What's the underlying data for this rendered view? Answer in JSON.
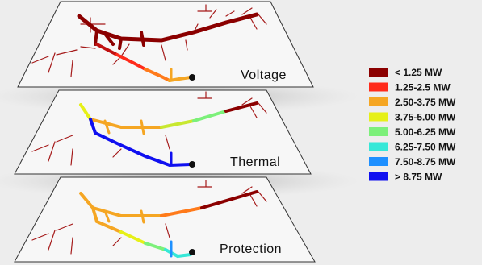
{
  "layers": [
    {
      "label": "Voltage"
    },
    {
      "label": "Thermal"
    },
    {
      "label": "Protection"
    }
  ],
  "legend": [
    {
      "label": "< 1.25 MW",
      "color": "#8b0000"
    },
    {
      "label": "1.25-2.5 MW",
      "color": "#ff2a1a"
    },
    {
      "label": "2.50-3.75 MW",
      "color": "#f5a623"
    },
    {
      "label": "3.75-5.00 MW",
      "color": "#e6f018"
    },
    {
      "label": "5.00-6.25 MW",
      "color": "#7cf07a"
    },
    {
      "label": "6.25-7.50 MW",
      "color": "#36e8d8"
    },
    {
      "label": "7.50-8.75 MW",
      "color": "#1e90ff"
    },
    {
      "label": "> 8.75 MW",
      "color": "#1010f0"
    }
  ]
}
